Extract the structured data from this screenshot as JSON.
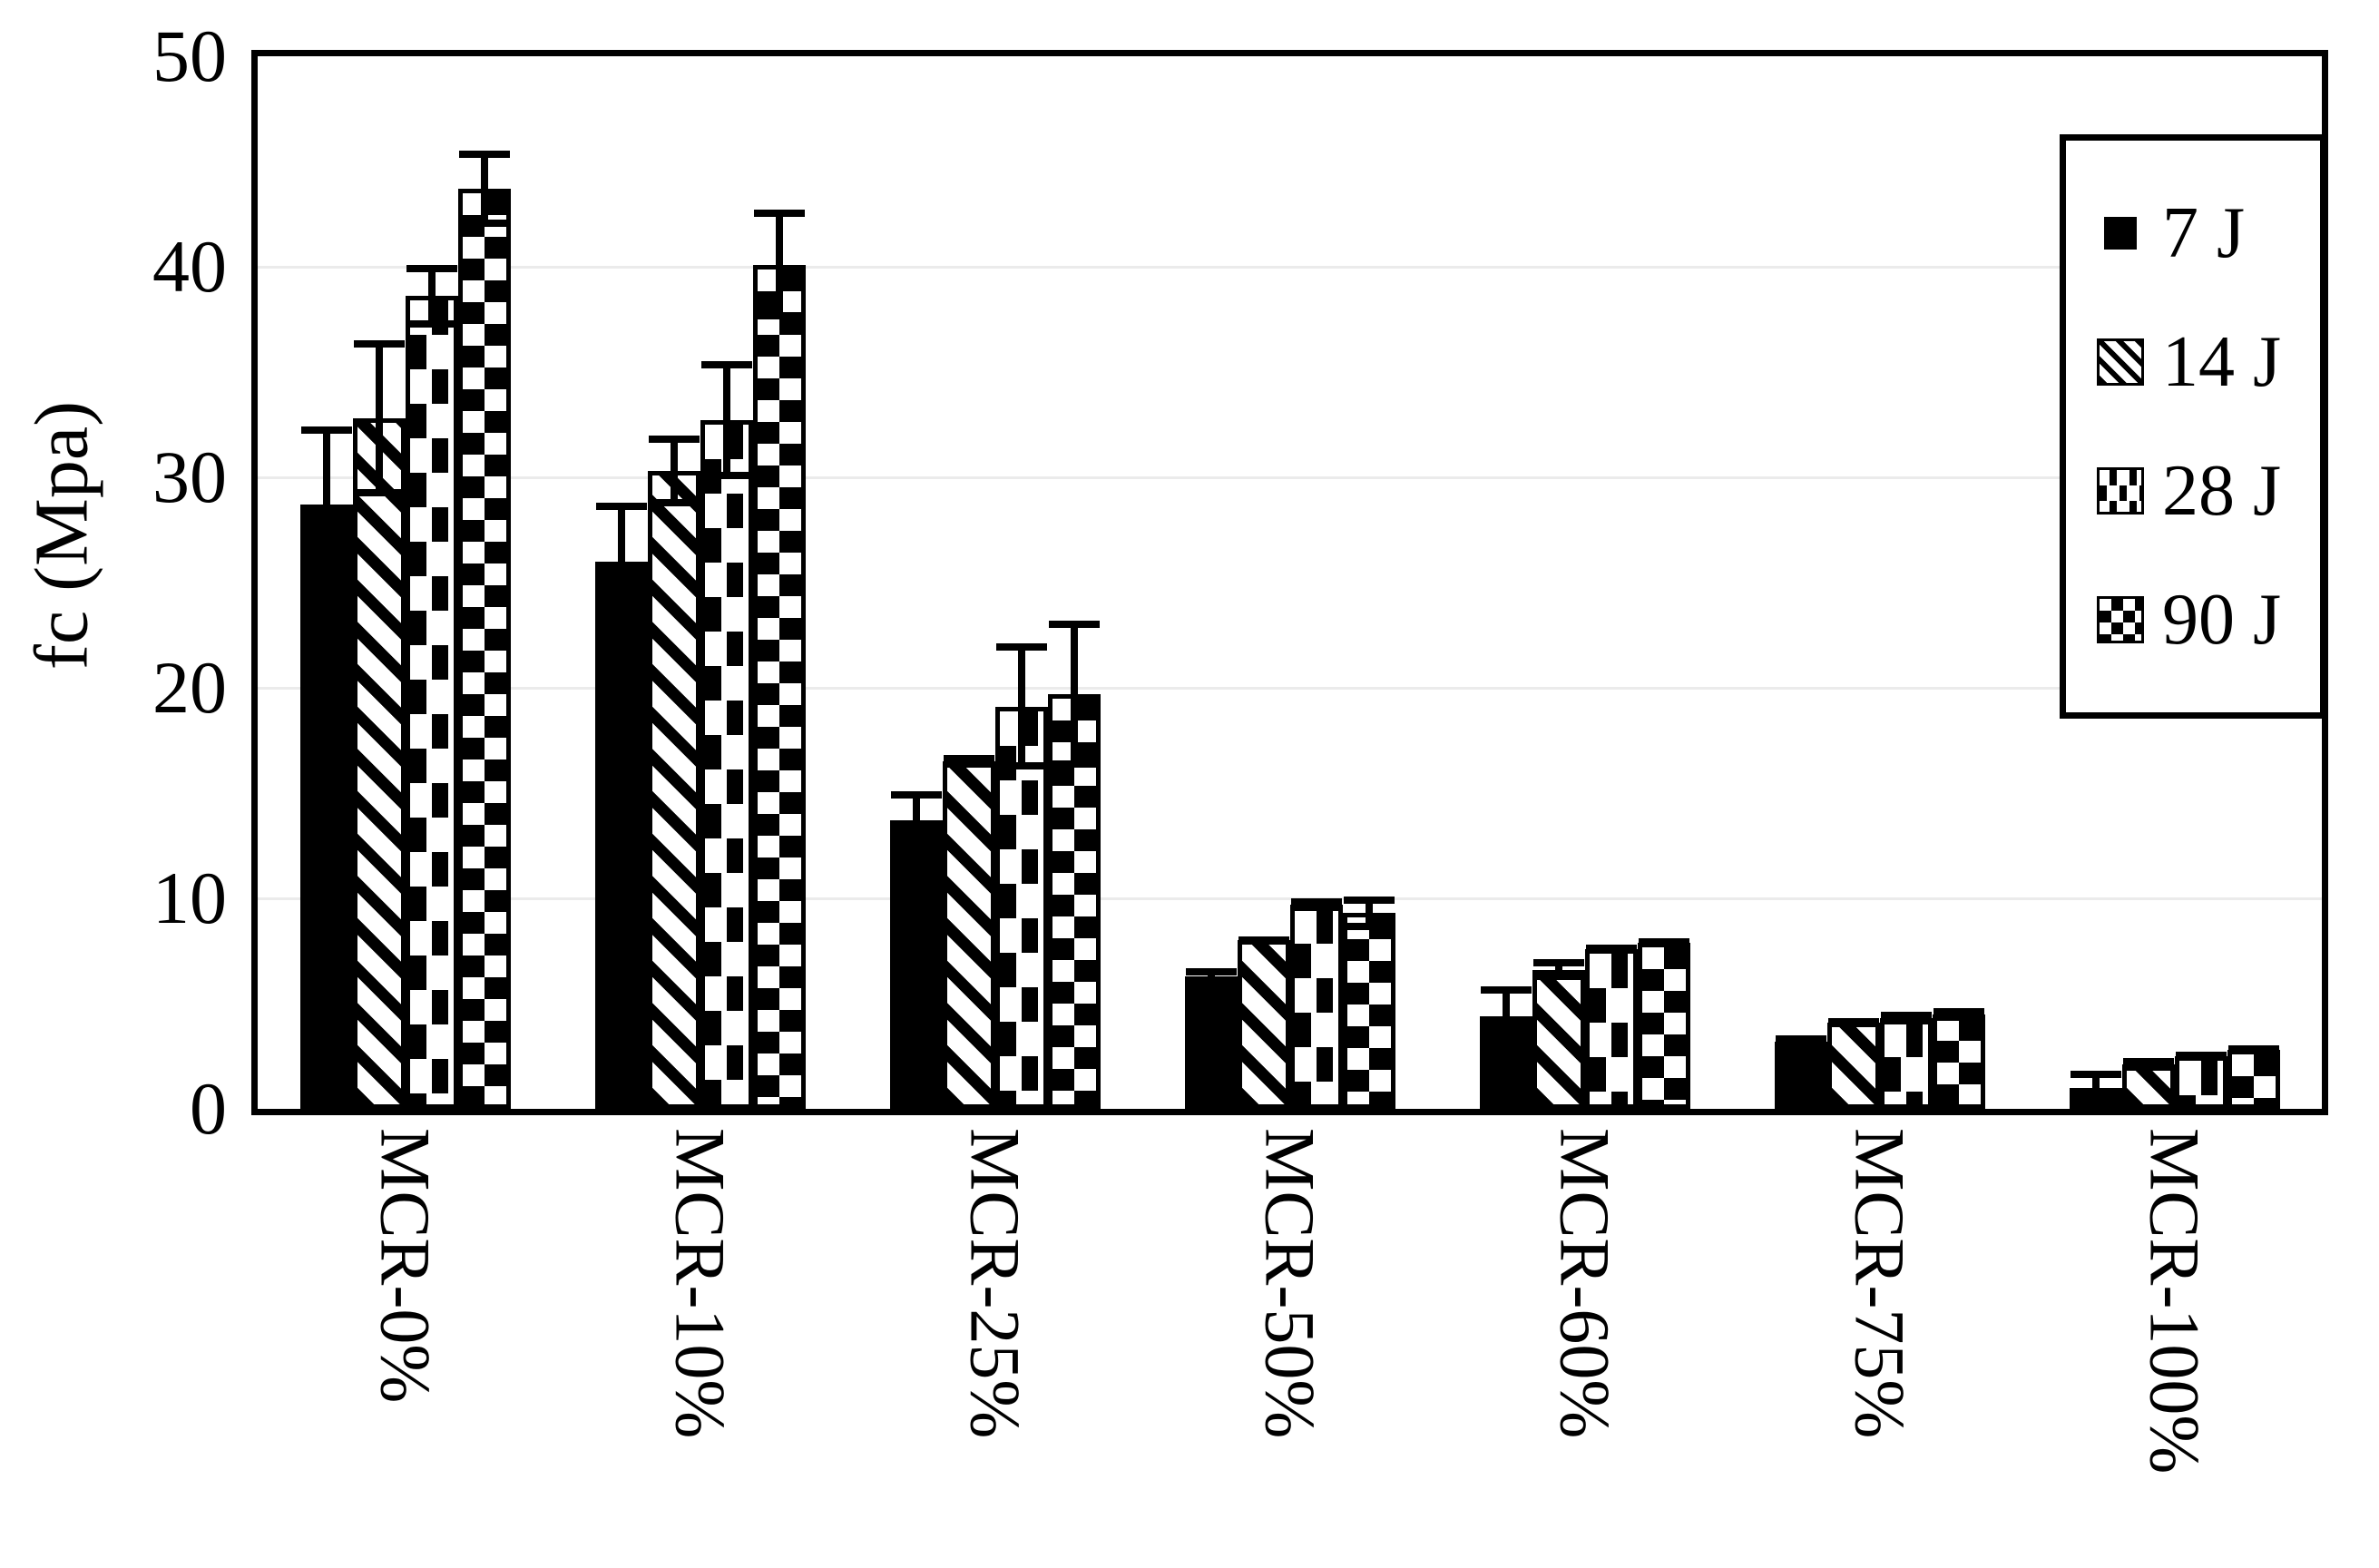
{
  "chart_data": {
    "type": "bar",
    "title": "",
    "xlabel": "",
    "ylabel": "fc (Mpa)",
    "ylim": [
      0,
      50
    ],
    "yticks": [
      0,
      10,
      20,
      30,
      40,
      50
    ],
    "grid": true,
    "legend_position": "top-right",
    "categories": [
      "MCR-0%",
      "MCR-10%",
      "MCR-25%",
      "MCR-50%",
      "MCR-60%",
      "MCR-75%",
      "MCR-100%"
    ],
    "series": [
      {
        "name": "7 J",
        "pattern": "solid-black",
        "values": [
          28.7,
          26.0,
          13.7,
          6.3,
          4.4,
          3.2,
          1.0
        ],
        "errors": [
          3.7,
          2.8,
          1.4,
          0.4,
          1.4,
          0.3,
          0.8
        ]
      },
      {
        "name": "14 J",
        "pattern": "diagonal-stripes",
        "values": [
          32.8,
          30.3,
          16.5,
          8.0,
          6.6,
          4.1,
          2.1
        ],
        "errors": [
          3.7,
          1.7,
          0.3,
          0.2,
          0.5,
          0.2,
          0.3
        ]
      },
      {
        "name": "28 J",
        "pattern": "vertical-dashes",
        "values": [
          38.6,
          32.7,
          19.1,
          9.7,
          7.6,
          4.3,
          2.5
        ],
        "errors": [
          1.5,
          2.8,
          3.0,
          0.3,
          0.2,
          0.3,
          0.2
        ]
      },
      {
        "name": "90 J",
        "pattern": "checkerboard",
        "values": [
          43.7,
          40.1,
          19.7,
          9.3,
          7.9,
          4.5,
          2.8
        ],
        "errors": [
          1.8,
          2.6,
          3.5,
          0.8,
          0.2,
          0.3,
          0.2
        ]
      }
    ]
  },
  "colors": {
    "foreground": "#000000",
    "background": "#ffffff",
    "gridline": "#ebebeb"
  }
}
